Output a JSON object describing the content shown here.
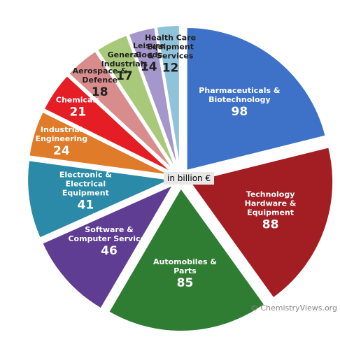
{
  "chart_data": {
    "type": "pie",
    "center_label": "in billion €",
    "credit": "© ChemistryViews.org",
    "categories": [
      "Pharmaceuticals & Biotechnology",
      "Technology Hardware & Equipment",
      "Automobiles & Parts",
      "Software & Computer Services",
      "Electronic & Electrical Equipment",
      "Industrial Engineering",
      "Chemicals",
      "Aerospace & Defence",
      "General Industrials",
      "Leisure Goods",
      "Health Care Equipment & Services"
    ],
    "values": [
      98,
      88,
      85,
      46,
      41,
      24,
      21,
      18,
      17,
      14,
      12
    ],
    "colors": [
      "#3d72c8",
      "#a31e22",
      "#2f7d33",
      "#5e3d92",
      "#2a8aa8",
      "#e07b29",
      "#e41e24",
      "#d98c8c",
      "#a9c97a",
      "#a596cc",
      "#8fc3d9"
    ]
  }
}
